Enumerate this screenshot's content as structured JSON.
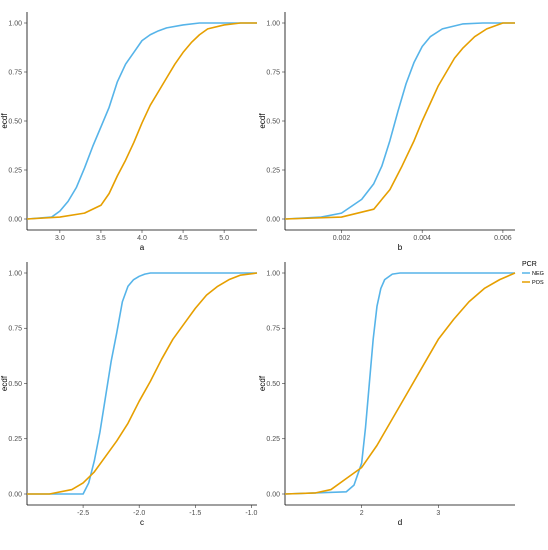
{
  "colors": {
    "NEG": "#56b4e9",
    "POS": "#e69f00",
    "axis": "#000000",
    "tick_text": "#4d4d4d"
  },
  "legend": {
    "title": "PCR",
    "items": [
      {
        "label": "NEG",
        "color": "#56b4e9"
      },
      {
        "label": "POS",
        "color": "#e69f00"
      }
    ]
  },
  "chart_data": [
    {
      "type": "line",
      "xlabel": "a",
      "ylabel": "ecdf",
      "xlim": [
        2.6,
        5.4
      ],
      "ylim": [
        0,
        1
      ],
      "xticks": [
        3.0,
        3.5,
        4.0,
        4.5,
        5.0
      ],
      "xtick_labels": [
        "3.0",
        "3.5",
        "4.0",
        "4.5",
        "5.0"
      ],
      "yticks": [
        0,
        0.25,
        0.5,
        0.75,
        1
      ],
      "ytick_labels": [
        "0.00",
        "0.25",
        "0.50",
        "0.75",
        "1.00"
      ],
      "grid": false,
      "series": [
        {
          "name": "NEG",
          "x": [
            2.6,
            2.9,
            3.0,
            3.1,
            3.2,
            3.3,
            3.4,
            3.5,
            3.6,
            3.7,
            3.8,
            3.9,
            4.0,
            4.1,
            4.2,
            4.3,
            4.5,
            4.7,
            5.0,
            5.4
          ],
          "y": [
            0.0,
            0.01,
            0.04,
            0.09,
            0.16,
            0.26,
            0.37,
            0.47,
            0.57,
            0.7,
            0.79,
            0.85,
            0.91,
            0.94,
            0.96,
            0.975,
            0.99,
            1.0,
            1.0,
            1.0
          ]
        },
        {
          "name": "POS",
          "x": [
            2.6,
            3.0,
            3.3,
            3.5,
            3.6,
            3.7,
            3.8,
            3.9,
            4.0,
            4.1,
            4.2,
            4.3,
            4.4,
            4.5,
            4.6,
            4.7,
            4.8,
            5.0,
            5.2,
            5.4
          ],
          "y": [
            0.0,
            0.01,
            0.03,
            0.07,
            0.13,
            0.22,
            0.3,
            0.39,
            0.49,
            0.58,
            0.65,
            0.72,
            0.79,
            0.85,
            0.9,
            0.94,
            0.97,
            0.99,
            1.0,
            1.0
          ]
        }
      ]
    },
    {
      "type": "line",
      "xlabel": "b",
      "ylabel": "ecdf",
      "xlim": [
        0.0006,
        0.0063
      ],
      "ylim": [
        0,
        1
      ],
      "xticks": [
        0.002,
        0.004,
        0.006
      ],
      "xtick_labels": [
        "0.002",
        "0.004",
        "0.006"
      ],
      "yticks": [
        0,
        0.25,
        0.5,
        0.75,
        1
      ],
      "ytick_labels": [
        "0.00",
        "0.25",
        "0.50",
        "0.75",
        "1.00"
      ],
      "grid": false,
      "series": [
        {
          "name": "NEG",
          "x": [
            0.0006,
            0.0015,
            0.002,
            0.0025,
            0.0028,
            0.003,
            0.0032,
            0.0034,
            0.0036,
            0.0038,
            0.004,
            0.0042,
            0.0045,
            0.005,
            0.0055,
            0.006,
            0.0063
          ],
          "y": [
            0.0,
            0.01,
            0.03,
            0.1,
            0.18,
            0.27,
            0.4,
            0.55,
            0.69,
            0.8,
            0.88,
            0.93,
            0.97,
            0.995,
            1.0,
            1.0,
            1.0
          ]
        },
        {
          "name": "POS",
          "x": [
            0.0006,
            0.002,
            0.0028,
            0.0032,
            0.0035,
            0.0038,
            0.004,
            0.0042,
            0.0044,
            0.0046,
            0.0048,
            0.005,
            0.0053,
            0.0056,
            0.006,
            0.0063
          ],
          "y": [
            0.0,
            0.01,
            0.05,
            0.15,
            0.27,
            0.4,
            0.5,
            0.59,
            0.68,
            0.75,
            0.82,
            0.87,
            0.93,
            0.97,
            1.0,
            1.0
          ]
        }
      ]
    },
    {
      "type": "line",
      "xlabel": "c",
      "ylabel": "ecdf",
      "xlim": [
        -3.0,
        -0.95
      ],
      "ylim": [
        0,
        1
      ],
      "xticks": [
        -2.5,
        -2.0,
        -1.5,
        -1.0
      ],
      "xtick_labels": [
        "-2.5",
        "-2.0",
        "-1.5",
        "-1.0"
      ],
      "yticks": [
        0,
        0.25,
        0.5,
        0.75,
        1
      ],
      "ytick_labels": [
        "0.00",
        "0.25",
        "0.50",
        "0.75",
        "1.00"
      ],
      "grid": false,
      "series": [
        {
          "name": "NEG",
          "x": [
            -3.0,
            -2.5,
            -2.45,
            -2.4,
            -2.35,
            -2.3,
            -2.25,
            -2.2,
            -2.15,
            -2.1,
            -2.05,
            -2.0,
            -1.95,
            -1.9,
            -1.8,
            -1.5,
            -0.95
          ],
          "y": [
            0.0,
            0.0,
            0.05,
            0.15,
            0.28,
            0.44,
            0.6,
            0.73,
            0.87,
            0.94,
            0.97,
            0.985,
            0.995,
            1.0,
            1.0,
            1.0,
            1.0
          ]
        },
        {
          "name": "POS",
          "x": [
            -3.0,
            -2.8,
            -2.6,
            -2.5,
            -2.4,
            -2.3,
            -2.2,
            -2.1,
            -2.0,
            -1.9,
            -1.8,
            -1.7,
            -1.6,
            -1.5,
            -1.4,
            -1.3,
            -1.2,
            -1.1,
            -0.95
          ],
          "y": [
            0.0,
            0.0,
            0.02,
            0.05,
            0.1,
            0.17,
            0.24,
            0.32,
            0.42,
            0.51,
            0.61,
            0.7,
            0.77,
            0.84,
            0.9,
            0.94,
            0.97,
            0.99,
            1.0
          ]
        }
      ]
    },
    {
      "type": "line",
      "xlabel": "d",
      "ylabel": "ecdf",
      "xlim": [
        1.0,
        4.0
      ],
      "ylim": [
        0,
        1
      ],
      "xticks": [
        2,
        3
      ],
      "xtick_labels": [
        "2",
        "3"
      ],
      "yticks": [
        0,
        0.25,
        0.5,
        0.75,
        1
      ],
      "ytick_labels": [
        "0.00",
        "0.25",
        "0.50",
        "0.75",
        "1.00"
      ],
      "grid": false,
      "series": [
        {
          "name": "NEG",
          "x": [
            1.0,
            1.8,
            1.9,
            2.0,
            2.05,
            2.1,
            2.15,
            2.2,
            2.25,
            2.3,
            2.4,
            2.5,
            3.0,
            4.0
          ],
          "y": [
            0.0,
            0.01,
            0.04,
            0.14,
            0.3,
            0.5,
            0.7,
            0.85,
            0.93,
            0.97,
            0.995,
            1.0,
            1.0,
            1.0
          ]
        },
        {
          "name": "POS",
          "x": [
            1.0,
            1.4,
            1.6,
            1.8,
            2.0,
            2.2,
            2.4,
            2.6,
            2.8,
            3.0,
            3.2,
            3.4,
            3.6,
            3.8,
            4.0
          ],
          "y": [
            0.0,
            0.005,
            0.02,
            0.07,
            0.12,
            0.22,
            0.34,
            0.46,
            0.58,
            0.7,
            0.79,
            0.87,
            0.93,
            0.97,
            1.0
          ]
        }
      ]
    }
  ]
}
